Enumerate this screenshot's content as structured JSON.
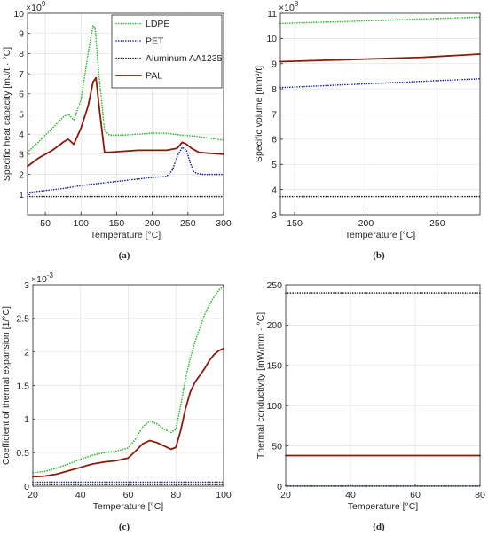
{
  "chart_data": [
    {
      "panel": "(a)",
      "type": "line",
      "xlabel": "Temperature [°C]",
      "ylabel": "Specific heat capacity [mJ/t · °C]",
      "exponent": "× 10^9",
      "xlim": [
        25,
        300
      ],
      "ylim": [
        0,
        10
      ],
      "xticks": [
        50,
        100,
        150,
        200,
        250,
        300
      ],
      "yticks": [
        1,
        2,
        3,
        4,
        5,
        6,
        7,
        8,
        9,
        10
      ],
      "grid": true,
      "legend": "top-right",
      "series": [
        {
          "name": "LDPE",
          "color": "#22b822",
          "style": "dotted",
          "x": [
            25,
            40,
            60,
            75,
            82,
            90,
            100,
            110,
            117,
            120,
            125,
            133,
            140,
            160,
            180,
            200,
            220,
            240,
            260,
            280,
            300
          ],
          "y": [
            3.1,
            3.6,
            4.3,
            4.85,
            5.0,
            4.7,
            5.7,
            8.0,
            9.4,
            9.2,
            7.0,
            4.2,
            3.95,
            3.95,
            4.0,
            4.05,
            4.05,
            3.95,
            3.9,
            3.8,
            3.7
          ]
        },
        {
          "name": "PET",
          "color": "#1f1fa8",
          "style": "dotted",
          "x": [
            25,
            50,
            75,
            100,
            125,
            150,
            175,
            200,
            220,
            228,
            235,
            242,
            248,
            253,
            258,
            262,
            270,
            285,
            300
          ],
          "y": [
            1.1,
            1.2,
            1.3,
            1.45,
            1.55,
            1.65,
            1.75,
            1.85,
            1.9,
            2.2,
            2.9,
            3.35,
            3.2,
            2.6,
            2.15,
            2.05,
            2.0,
            2.0,
            2.0
          ]
        },
        {
          "name": "Aluminum AA1235",
          "color": "#1a1a1a",
          "style": "dotted",
          "x": [
            25,
            300
          ],
          "y": [
            0.9,
            0.9
          ]
        },
        {
          "name": "PAL",
          "color": "#8b1a0a",
          "style": "solid",
          "x": [
            25,
            40,
            60,
            75,
            82,
            90,
            100,
            110,
            117,
            121,
            126,
            133,
            140,
            160,
            180,
            200,
            220,
            235,
            242,
            248,
            255,
            265,
            280,
            300
          ],
          "y": [
            2.4,
            2.8,
            3.2,
            3.6,
            3.75,
            3.5,
            4.3,
            5.4,
            6.6,
            6.8,
            5.2,
            3.1,
            3.1,
            3.15,
            3.2,
            3.2,
            3.2,
            3.3,
            3.6,
            3.5,
            3.3,
            3.1,
            3.05,
            3.0
          ]
        }
      ]
    },
    {
      "panel": "(b)",
      "type": "line",
      "xlabel": "Temperature [°C]",
      "ylabel": "Specific volume [mm³/t]",
      "exponent": "× 10^8",
      "xlim": [
        140,
        280
      ],
      "ylim": [
        3,
        11
      ],
      "xticks": [
        150,
        200,
        250
      ],
      "yticks": [
        3,
        4,
        5,
        6,
        7,
        8,
        9,
        10,
        11
      ],
      "grid": true,
      "series": [
        {
          "name": "LDPE",
          "color": "#22b822",
          "style": "dotted",
          "x": [
            140,
            200,
            280
          ],
          "y": [
            10.6,
            10.7,
            10.85
          ]
        },
        {
          "name": "PET",
          "color": "#1f1fa8",
          "style": "dotted",
          "x": [
            140,
            200,
            280
          ],
          "y": [
            8.05,
            8.2,
            8.4
          ]
        },
        {
          "name": "Aluminum AA1235",
          "color": "#1a1a1a",
          "style": "dotted",
          "x": [
            140,
            280
          ],
          "y": [
            3.72,
            3.72
          ]
        },
        {
          "name": "PAL",
          "color": "#8b1a0a",
          "style": "solid",
          "x": [
            140,
            200,
            240,
            280
          ],
          "y": [
            9.08,
            9.18,
            9.25,
            9.38
          ]
        }
      ]
    },
    {
      "panel": "(c)",
      "type": "line",
      "xlabel": "Temperature [°C]",
      "ylabel": "Coefficient of thermal expansion [1/°C]",
      "exponent": "× 10^-3",
      "xlim": [
        20,
        100
      ],
      "ylim": [
        0,
        3
      ],
      "xticks": [
        20,
        40,
        60,
        80,
        100
      ],
      "yticks": [
        0,
        0.5,
        1,
        1.5,
        2,
        2.5,
        3
      ],
      "grid": true,
      "series": [
        {
          "name": "LDPE",
          "color": "#22b822",
          "style": "dotted",
          "x": [
            20,
            25,
            30,
            35,
            40,
            45,
            50,
            55,
            60,
            63,
            66,
            69,
            72,
            75,
            78,
            80,
            82,
            84,
            86,
            88,
            90,
            92,
            94,
            96,
            98,
            100
          ],
          "y": [
            0.2,
            0.22,
            0.27,
            0.33,
            0.4,
            0.46,
            0.5,
            0.52,
            0.57,
            0.7,
            0.88,
            0.97,
            0.93,
            0.85,
            0.8,
            0.85,
            1.2,
            1.6,
            1.9,
            2.15,
            2.35,
            2.55,
            2.7,
            2.82,
            2.92,
            2.98
          ]
        },
        {
          "name": "PET",
          "color": "#1f1fa8",
          "style": "dotted",
          "x": [
            20,
            100
          ],
          "y": [
            0.06,
            0.06
          ]
        },
        {
          "name": "Aluminum AA1235",
          "color": "#1a1a1a",
          "style": "dotted",
          "x": [
            20,
            100
          ],
          "y": [
            0.024,
            0.024
          ]
        },
        {
          "name": "PAL",
          "color": "#8b1a0a",
          "style": "solid",
          "x": [
            20,
            25,
            30,
            35,
            40,
            45,
            50,
            55,
            60,
            63,
            66,
            69,
            72,
            75,
            78,
            80,
            82,
            84,
            86,
            88,
            90,
            92,
            94,
            96,
            98,
            100
          ],
          "y": [
            0.14,
            0.15,
            0.18,
            0.23,
            0.28,
            0.33,
            0.36,
            0.38,
            0.42,
            0.52,
            0.63,
            0.68,
            0.65,
            0.6,
            0.55,
            0.58,
            0.83,
            1.15,
            1.4,
            1.55,
            1.65,
            1.75,
            1.87,
            1.96,
            2.02,
            2.05
          ]
        }
      ]
    },
    {
      "panel": "(d)",
      "type": "line",
      "xlabel": "Temperature [°C]",
      "ylabel": "Thermal conductivity [mW/mm · °C]",
      "exponent": "",
      "xlim": [
        20,
        80
      ],
      "ylim": [
        0,
        250
      ],
      "xticks": [
        20,
        40,
        60,
        80
      ],
      "yticks": [
        0,
        50,
        100,
        150,
        200,
        250
      ],
      "grid": true,
      "series": [
        {
          "name": "LDPE",
          "color": "#22b822",
          "style": "dotted",
          "x": [
            20,
            80
          ],
          "y": [
            0.33,
            0.33
          ]
        },
        {
          "name": "PET",
          "color": "#1f1fa8",
          "style": "dotted",
          "x": [
            20,
            80
          ],
          "y": [
            0.2,
            0.2
          ]
        },
        {
          "name": "Aluminum AA1235",
          "color": "#1a1a1a",
          "style": "dotted",
          "x": [
            20,
            80
          ],
          "y": [
            240,
            240
          ]
        },
        {
          "name": "PAL",
          "color": "#8b1a0a",
          "style": "solid",
          "x": [
            20,
            80
          ],
          "y": [
            38,
            38
          ]
        }
      ]
    }
  ]
}
